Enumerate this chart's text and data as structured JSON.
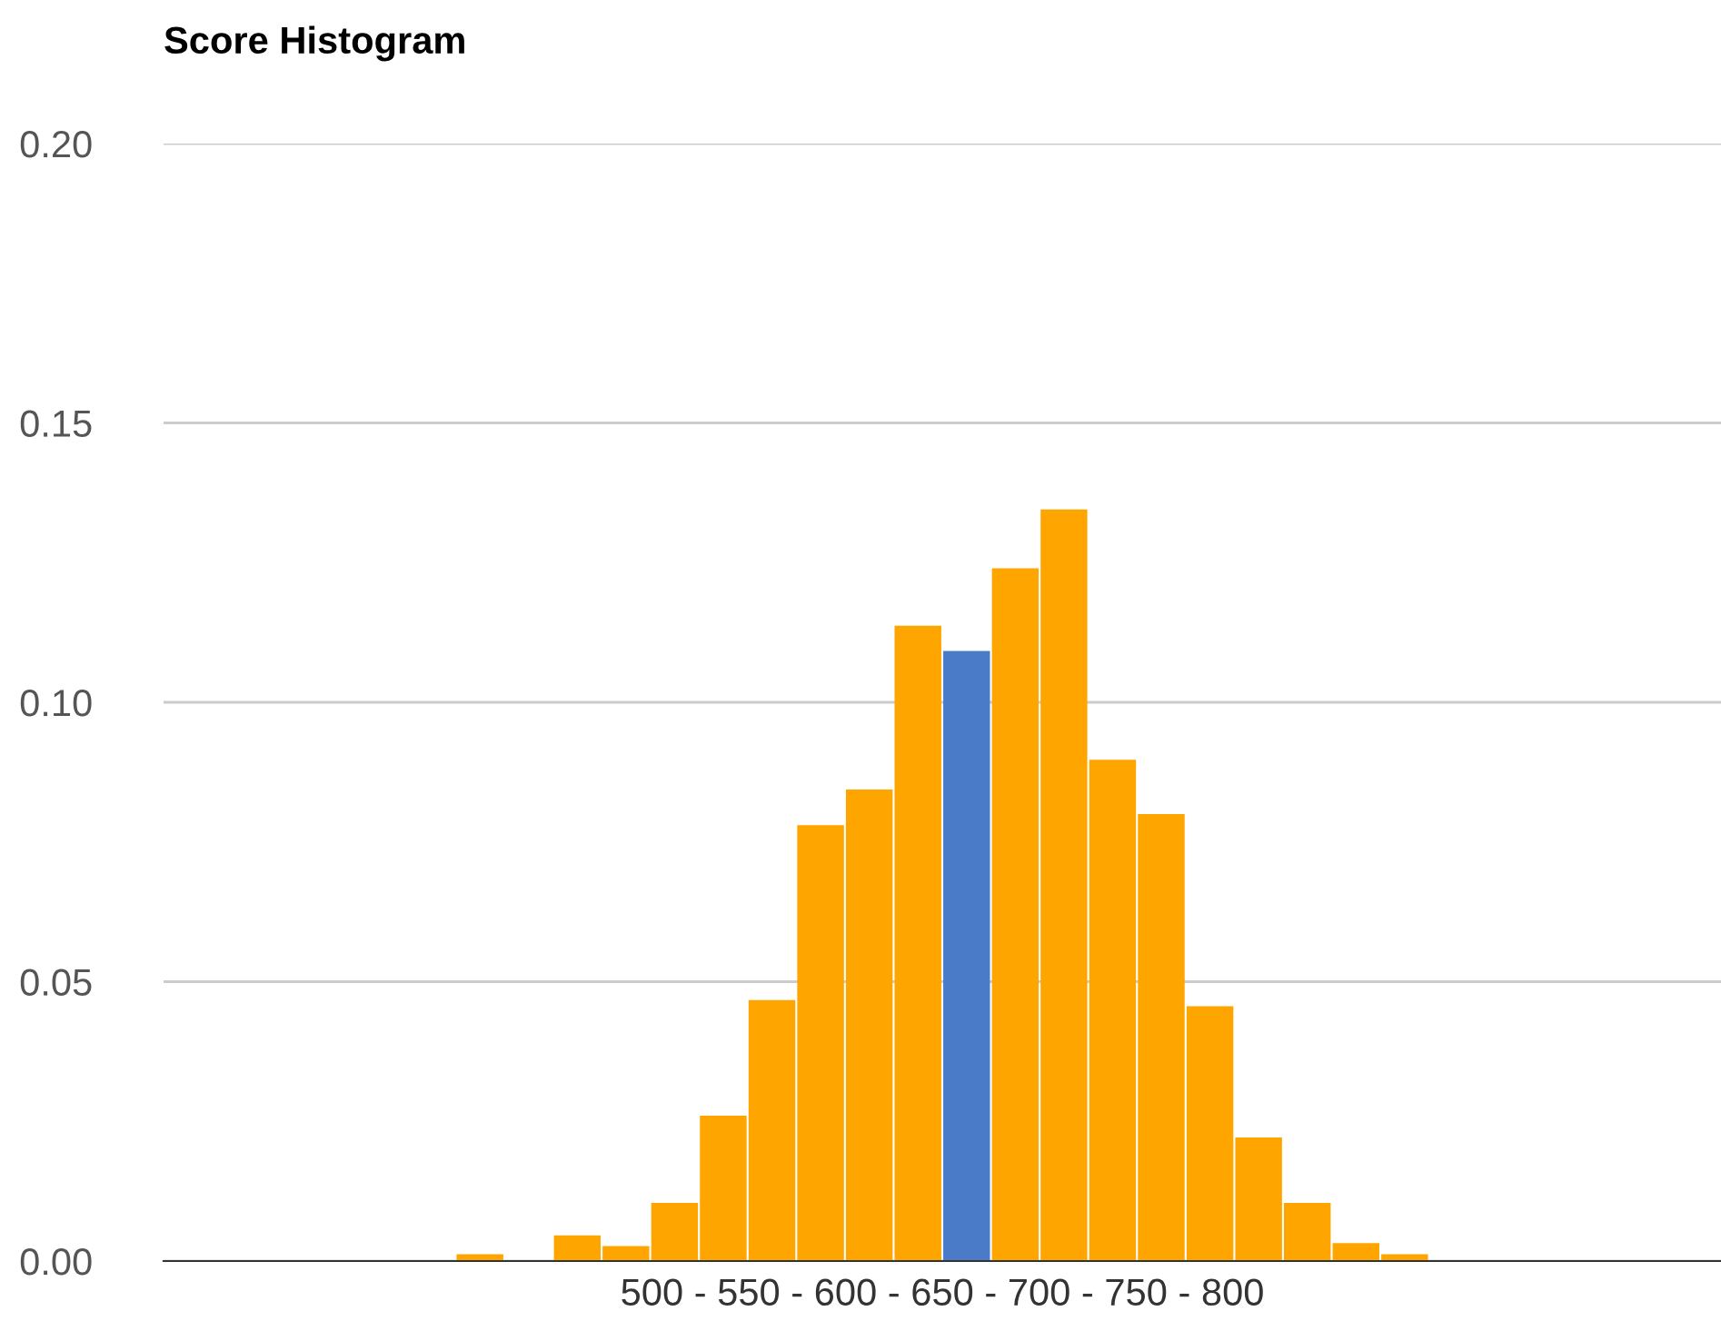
{
  "chart_data": {
    "type": "bar",
    "title": "Score Histogram",
    "xlabel": "500 - 550 - 600 - 650 - 700 - 750 - 800",
    "categories": [
      null,
      null,
      null,
      null,
      null,
      null,
      null,
      null,
      null,
      null,
      null,
      null,
      null,
      null,
      null,
      null,
      null,
      null,
      null,
      null,
      null,
      null,
      null,
      null,
      null,
      null,
      null,
      null,
      null,
      null,
      null,
      null
    ],
    "values": [
      null,
      null,
      null,
      null,
      null,
      null,
      0.0012,
      0,
      0.0046,
      0.0027,
      0.0104,
      0.026,
      0.0467,
      0.078,
      0.0844,
      0.1137,
      0.1092,
      0.124,
      0.1345,
      0.0897,
      0.08,
      0.0456,
      0.0221,
      0.0104,
      0.0032,
      0.0012,
      null,
      null,
      null,
      null,
      null,
      null
    ],
    "colors": [
      "#ffa500",
      "#ffa500",
      "#ffa500",
      "#ffa500",
      "#ffa500",
      "#ffa500",
      "#ffa500",
      "#ffa500",
      "#ffa500",
      "#ffa500",
      "#ffa500",
      "#ffa500",
      "#ffa500",
      "#ffa500",
      "#ffa500",
      "#ffa500",
      "#4a7bc8",
      "#ffa500",
      "#ffa500",
      "#ffa500",
      "#ffa500",
      "#ffa500",
      "#ffa500",
      "#ffa500",
      "#ffa500",
      "#ffa500",
      "#ffa500",
      "#ffa500",
      "#ffa500",
      "#ffa500",
      "#ffa500",
      "#ffa500"
    ],
    "ylim": [
      0,
      0.2
    ],
    "yticks": [
      {
        "value": 0,
        "label": "0.00"
      },
      {
        "value": 0.05,
        "label": "0.05"
      },
      {
        "value": 0.1,
        "label": "0.10"
      },
      {
        "value": 0.15,
        "label": "0.15"
      },
      {
        "value": 0.2,
        "label": "0.20"
      }
    ],
    "grid": "y",
    "legend": false
  }
}
